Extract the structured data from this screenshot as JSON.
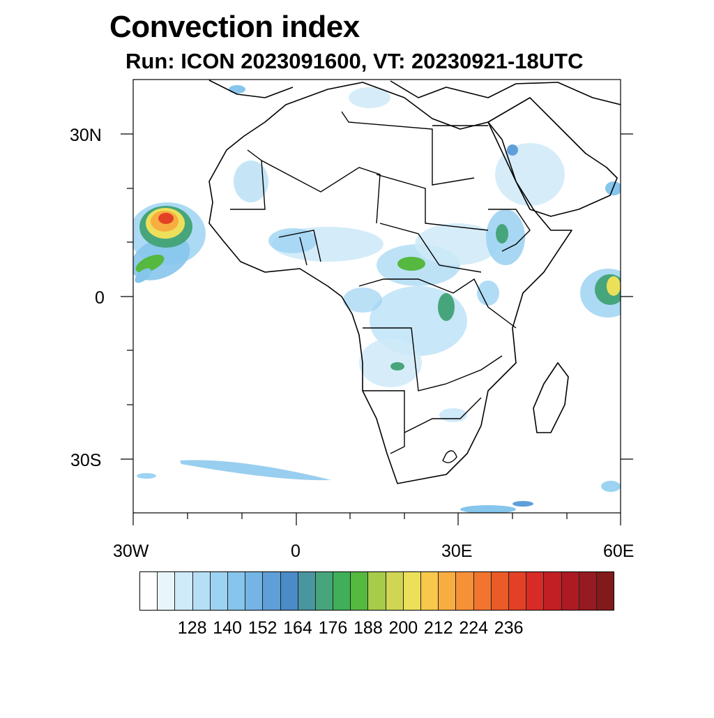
{
  "title": "Convection index",
  "subtitle": "Run: ICON 2023091600,  VT: 20230921-18UTC",
  "map": {
    "projection": "cylindrical-equidistant",
    "lon_range": [
      -30,
      60
    ],
    "lat_range": [
      -40,
      40
    ],
    "y_tick_labels": [
      "30N",
      "0",
      "30S"
    ],
    "x_tick_labels": [
      "30W",
      "0",
      "30E",
      "60E"
    ]
  },
  "colorbar": {
    "colors": [
      "#ffffff",
      "#e8f5fb",
      "#cfeaf8",
      "#b6dff5",
      "#9dd3f2",
      "#86c5ec",
      "#74b5e5",
      "#5e9fd8",
      "#4a8bc8",
      "#4995a0",
      "#47a57c",
      "#3faf5a",
      "#55b83f",
      "#a6cc4a",
      "#d0d654",
      "#ece05a",
      "#f8c84c",
      "#f8ad41",
      "#f69138",
      "#f1752e",
      "#ea5b27",
      "#e24125",
      "#d82a26",
      "#c21f25",
      "#ac1b24",
      "#961a21",
      "#821a1c"
    ],
    "tick_labels": [
      "128",
      "140",
      "152",
      "164",
      "176",
      "188",
      "200",
      "212",
      "224",
      "236"
    ]
  }
}
